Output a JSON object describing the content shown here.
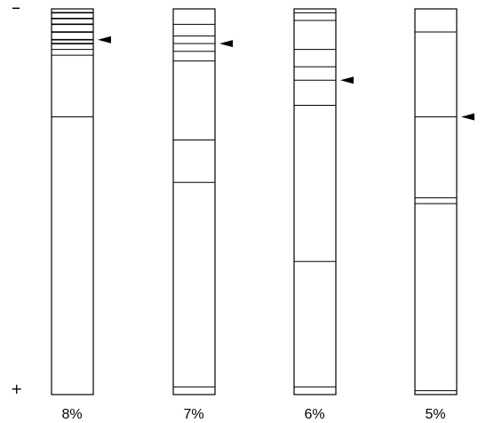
{
  "polarity": {
    "negative": "–",
    "positive": "+"
  },
  "gels": [
    {
      "label": "8%",
      "bands": [
        0.01,
        0.025,
        0.04,
        0.06,
        0.08,
        0.09,
        0.105,
        0.12,
        0.28
      ],
      "marked_band_index": 4
    },
    {
      "label": "7%",
      "bands": [
        0.04,
        0.07,
        0.09,
        0.11,
        0.135,
        0.34,
        0.45,
        0.98
      ],
      "marked_band_index": 2
    },
    {
      "label": "6%",
      "bands": [
        0.01,
        0.03,
        0.105,
        0.15,
        0.185,
        0.25,
        0.655,
        0.98
      ],
      "marked_band_index": 4
    },
    {
      "label": "5%",
      "bands": [
        0.06,
        0.28,
        0.49,
        0.505,
        0.99
      ],
      "marked_band_index": 1
    }
  ]
}
